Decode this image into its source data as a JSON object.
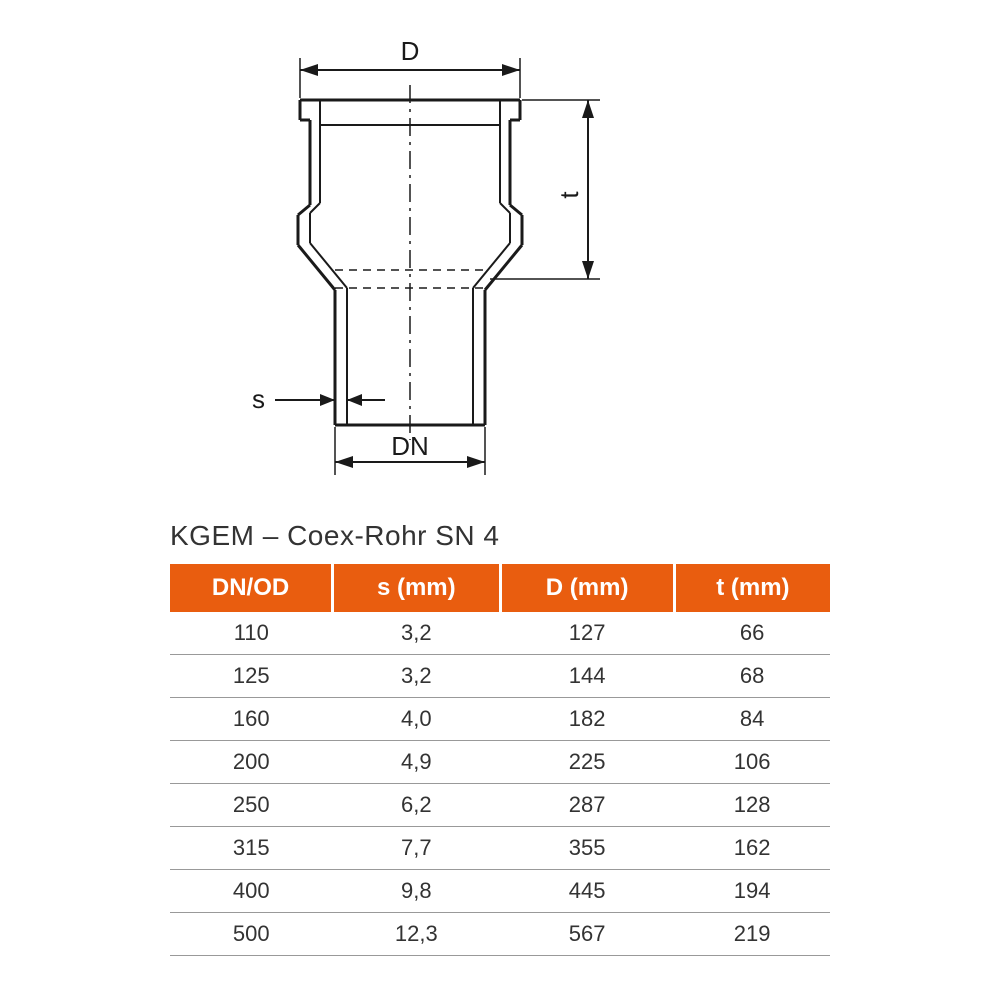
{
  "diagram": {
    "labels": {
      "D": "D",
      "t": "t",
      "s": "s",
      "DN": "DN"
    },
    "colors": {
      "stroke": "#1a1a1a",
      "background": "#ffffff"
    },
    "stroke_width_main": 3,
    "stroke_width_dim": 2
  },
  "title": "KGEM – Coex-Rohr SN 4",
  "table": {
    "header_bg": "#e95d0f",
    "header_fg": "#ffffff",
    "row_border": "#999999",
    "text_color": "#333333",
    "columns": [
      "DN/OD",
      "s (mm)",
      "D (mm)",
      "t (mm)"
    ],
    "rows": [
      [
        "110",
        "3,2",
        "127",
        "66"
      ],
      [
        "125",
        "3,2",
        "144",
        "68"
      ],
      [
        "160",
        "4,0",
        "182",
        "84"
      ],
      [
        "200",
        "4,9",
        "225",
        "106"
      ],
      [
        "250",
        "6,2",
        "287",
        "128"
      ],
      [
        "315",
        "7,7",
        "355",
        "162"
      ],
      [
        "400",
        "9,8",
        "445",
        "194"
      ],
      [
        "500",
        "12,3",
        "567",
        "219"
      ]
    ]
  }
}
